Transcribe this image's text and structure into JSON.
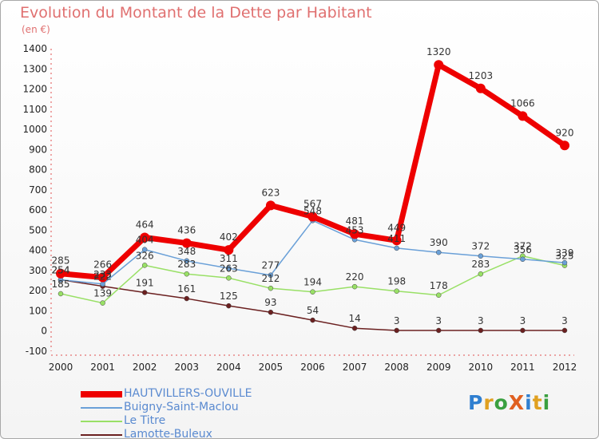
{
  "title": "Evolution du Montant de la Dette par Habitant",
  "unit_label": "(en €)",
  "logo": {
    "text": "ProXiti",
    "colors": [
      "#2f7fd0",
      "#e0a020",
      "#3aa040",
      "#e06020",
      "#2f7fd0",
      "#e0a020",
      "#3aa040"
    ]
  },
  "chart_data": {
    "type": "line",
    "title": "Evolution du Montant de la Dette par Habitant",
    "ylabel": "(en €)",
    "ylim": [
      -100,
      1400
    ],
    "yticks": [
      -100,
      0,
      100,
      200,
      300,
      400,
      500,
      600,
      700,
      800,
      900,
      1000,
      1100,
      1200,
      1300,
      1400
    ],
    "x": [
      2000,
      2001,
      2002,
      2003,
      2004,
      2005,
      2006,
      2007,
      2008,
      2009,
      2010,
      2011,
      2012
    ],
    "grid": false,
    "legend_position": "bottom-left",
    "series": [
      {
        "name": "HAUTVILLERS-OUVILLE",
        "color": "#ee0000",
        "values": [
          285,
          266,
          464,
          436,
          402,
          623,
          567,
          481,
          449,
          1320,
          1203,
          1066,
          920
        ]
      },
      {
        "name": "Buigny-Saint-Maclou",
        "color": "#6aa0d8",
        "values": [
          254,
          233,
          404,
          348,
          311,
          277,
          548,
          453,
          411,
          390,
          372,
          356,
          339
        ]
      },
      {
        "name": "Le Titre",
        "color": "#99e066",
        "values": [
          185,
          139,
          326,
          283,
          263,
          212,
          194,
          220,
          198,
          178,
          283,
          372,
          325
        ]
      },
      {
        "name": "Lamotte-Buleux",
        "color": "#6b2020",
        "values": [
          254,
          222,
          191,
          161,
          125,
          93,
          54,
          14,
          3,
          3,
          3,
          3,
          3
        ]
      }
    ]
  }
}
